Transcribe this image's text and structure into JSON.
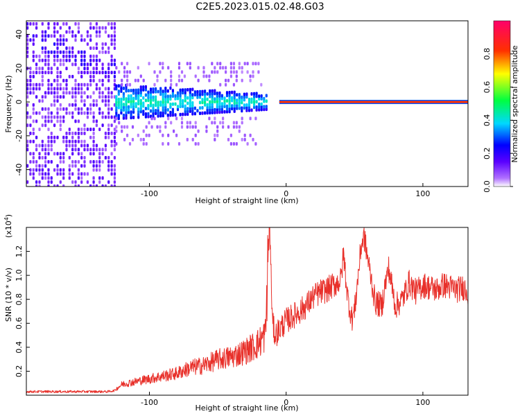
{
  "title": "C2E5.2023.015.02.48.G03",
  "chart_data": [
    {
      "type": "heatmap",
      "xlabel": "Height of straight line (km)",
      "ylabel": "Frequency (Hz)",
      "xlim": [
        -190,
        133
      ],
      "ylim": [
        -50,
        48
      ],
      "xticks": [
        -100,
        0,
        100
      ],
      "yticks": [
        -40,
        -20,
        0,
        20,
        40
      ],
      "grid": false,
      "colorbar": {
        "label": "Normalized spectral amplitude",
        "range": [
          0,
          1
        ],
        "ticks": [
          "0.0",
          "0.2",
          "0.4",
          "0.6",
          "0.8"
        ]
      },
      "features": {
        "noise_region_x": [
          -190,
          -125
        ],
        "dispersed_band_x": [
          -125,
          -15
        ],
        "narrow_line_x": [
          -5,
          133
        ],
        "line_frequency_hz": 0
      }
    },
    {
      "type": "line",
      "xlabel": "Height of straight line (km)",
      "ylabel": "SNR (10 * v/v)",
      "y_multiplier": "(x10",
      "y_multiplier_exp": "4",
      "y_multiplier_close": ")",
      "xlim": [
        -190,
        133
      ],
      "ylim": [
        0,
        1.4
      ],
      "xticks": [
        -100,
        0,
        100
      ],
      "yticks": [
        "0.2",
        "0.4",
        "0.6",
        "0.8",
        "1.0",
        "1.2"
      ],
      "series_color": "#e8302a",
      "series": [
        {
          "x": [
            -190,
            -170,
            -150,
            -130,
            -125,
            -120,
            -110,
            -100,
            -90,
            -80,
            -70,
            -60,
            -50,
            -40,
            -30,
            -20,
            -15,
            -12,
            -10,
            -8,
            -5,
            0,
            5,
            10,
            15,
            20,
            25,
            30,
            35,
            40,
            42,
            45,
            48,
            50,
            55,
            57,
            60,
            65,
            70,
            72,
            75,
            80,
            85,
            90,
            95,
            100,
            105,
            110,
            115,
            120,
            125,
            130,
            133
          ],
          "y": [
            0.03,
            0.03,
            0.03,
            0.03,
            0.04,
            0.08,
            0.1,
            0.12,
            0.14,
            0.16,
            0.2,
            0.22,
            0.26,
            0.28,
            0.32,
            0.38,
            0.45,
            1.4,
            0.6,
            0.5,
            0.55,
            0.62,
            0.66,
            0.7,
            0.75,
            0.82,
            0.86,
            0.88,
            0.92,
            0.96,
            1.18,
            0.82,
            0.64,
            0.7,
            1.26,
            1.32,
            1.12,
            0.78,
            0.74,
            0.9,
            1.06,
            0.74,
            0.8,
            0.94,
            0.86,
            0.92,
            0.9,
            0.88,
            0.92,
            0.9,
            0.88,
            0.9,
            0.86
          ]
        }
      ]
    }
  ]
}
